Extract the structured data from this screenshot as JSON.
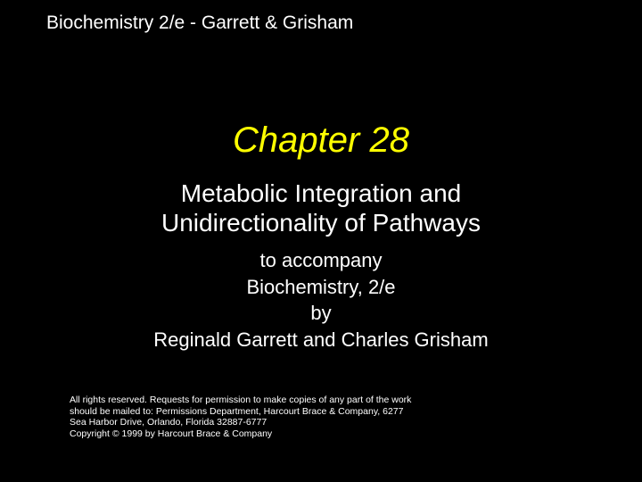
{
  "header": {
    "text": "Biochemistry 2/e - Garrett & Grisham",
    "color": "#ffffff",
    "fontsize": 21
  },
  "chapter": {
    "label": "Chapter 28",
    "color": "#ffff00",
    "fontsize": 40,
    "italic": true
  },
  "subtitle": {
    "line1": "Metabolic Integration and",
    "line2": "Unidirectionality of Pathways",
    "color": "#ffffff",
    "fontsize": 28
  },
  "accompany": {
    "line1": "to accompany",
    "line2": "Biochemistry, 2/e",
    "line3": "by",
    "line4": "Reginald Garrett and Charles Grisham",
    "color": "#ffffff",
    "fontsize": 22
  },
  "copyright": {
    "line1": "All rights reserved. Requests for permission to make copies of any part of the work",
    "line2": "should be mailed to: Permissions Department, Harcourt Brace & Company,    6277",
    "line3": "Sea Harbor Drive, Orlando, Florida 32887-6777",
    "line4": "Copyright © 1999 by Harcourt Brace & Company",
    "color": "#ffffff",
    "fontsize": 10.5
  },
  "background_color": "#000000"
}
